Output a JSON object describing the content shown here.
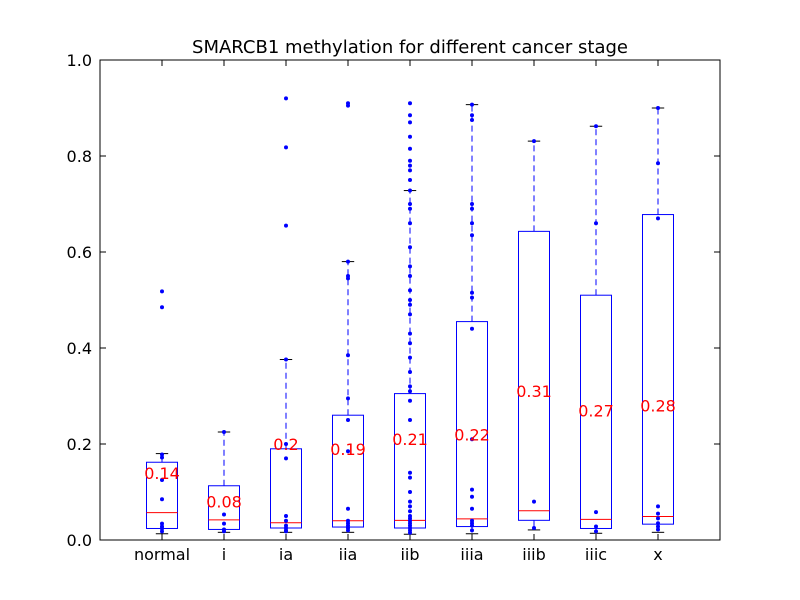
{
  "chart_data": {
    "type": "box",
    "title": "SMARCB1 methylation for different cancer stage",
    "xlabel": "",
    "ylabel": "",
    "ylim": [
      0,
      1.0
    ],
    "yticks": [
      "0.0",
      "0.2",
      "0.4",
      "0.6",
      "0.8",
      "1.0"
    ],
    "ytick_values": [
      0,
      0.2,
      0.4,
      0.6,
      0.8,
      1.0
    ],
    "grid": false,
    "colors": {
      "box": "#0000ff",
      "median": "#ff0000",
      "cap": "#000000",
      "label": "#ff0000"
    },
    "categories": [
      "normal",
      "i",
      "ia",
      "iia",
      "iib",
      "iiia",
      "iiib",
      "iiic",
      "x"
    ],
    "boxes": [
      {
        "category": "normal",
        "whisker_low": 0.013,
        "q1": 0.024,
        "median": 0.057,
        "q3": 0.162,
        "whisker_high": 0.18,
        "mean_label": "0.14",
        "mean": 0.14,
        "points": [
          0.518,
          0.485,
          0.178,
          0.172,
          0.125,
          0.085,
          0.034,
          0.028,
          0.024,
          0.018
        ]
      },
      {
        "category": "i",
        "whisker_low": 0.016,
        "q1": 0.022,
        "median": 0.042,
        "q3": 0.113,
        "whisker_high": 0.225,
        "mean_label": "0.08",
        "mean": 0.08,
        "points": [
          0.225,
          0.053,
          0.034,
          0.022,
          0.018
        ]
      },
      {
        "category": "ia",
        "whisker_low": 0.016,
        "q1": 0.025,
        "median": 0.036,
        "q3": 0.19,
        "whisker_high": 0.376,
        "mean_label": "0.2",
        "mean": 0.2,
        "points": [
          0.92,
          0.818,
          0.655,
          0.376,
          0.2,
          0.17,
          0.05,
          0.04,
          0.03,
          0.025,
          0.02,
          0.018
        ]
      },
      {
        "category": "iia",
        "whisker_low": 0.016,
        "q1": 0.027,
        "median": 0.04,
        "q3": 0.26,
        "whisker_high": 0.58,
        "mean_label": "0.19",
        "mean": 0.19,
        "points": [
          0.91,
          0.905,
          0.58,
          0.55,
          0.545,
          0.385,
          0.295,
          0.25,
          0.185,
          0.065,
          0.04,
          0.035,
          0.03,
          0.025,
          0.02
        ]
      },
      {
        "category": "iib",
        "whisker_low": 0.012,
        "q1": 0.025,
        "median": 0.041,
        "q3": 0.305,
        "whisker_high": 0.728,
        "mean_label": "0.21",
        "mean": 0.21,
        "points": [
          0.91,
          0.885,
          0.87,
          0.84,
          0.815,
          0.79,
          0.78,
          0.77,
          0.75,
          0.728,
          0.7,
          0.69,
          0.66,
          0.61,
          0.57,
          0.55,
          0.52,
          0.5,
          0.49,
          0.47,
          0.43,
          0.41,
          0.38,
          0.35,
          0.32,
          0.31,
          0.29,
          0.25,
          0.14,
          0.13,
          0.1,
          0.08,
          0.07,
          0.06,
          0.05,
          0.045,
          0.04,
          0.035,
          0.03,
          0.025,
          0.02,
          0.015
        ]
      },
      {
        "category": "iiia",
        "whisker_low": 0.013,
        "q1": 0.028,
        "median": 0.044,
        "q3": 0.455,
        "whisker_high": 0.907,
        "mean_label": "0.22",
        "mean": 0.22,
        "points": [
          0.907,
          0.885,
          0.875,
          0.7,
          0.69,
          0.66,
          0.635,
          0.515,
          0.505,
          0.44,
          0.21,
          0.105,
          0.09,
          0.065,
          0.04,
          0.035,
          0.03,
          0.02
        ]
      },
      {
        "category": "iiib",
        "whisker_low": 0.021,
        "q1": 0.041,
        "median": 0.061,
        "q3": 0.643,
        "whisker_high": 0.831,
        "mean_label": "0.31",
        "mean": 0.31,
        "points": [
          0.831,
          0.08,
          0.025
        ]
      },
      {
        "category": "iiic",
        "whisker_low": 0.014,
        "q1": 0.024,
        "median": 0.043,
        "q3": 0.51,
        "whisker_high": 0.862,
        "mean_label": "0.27",
        "mean": 0.27,
        "points": [
          0.862,
          0.66,
          0.058,
          0.028,
          0.018
        ]
      },
      {
        "category": "x",
        "whisker_low": 0.016,
        "q1": 0.033,
        "median": 0.049,
        "q3": 0.678,
        "whisker_high": 0.9,
        "mean_label": "0.28",
        "mean": 0.28,
        "points": [
          0.9,
          0.785,
          0.67,
          0.07,
          0.055,
          0.045,
          0.035,
          0.028,
          0.022
        ]
      }
    ]
  }
}
